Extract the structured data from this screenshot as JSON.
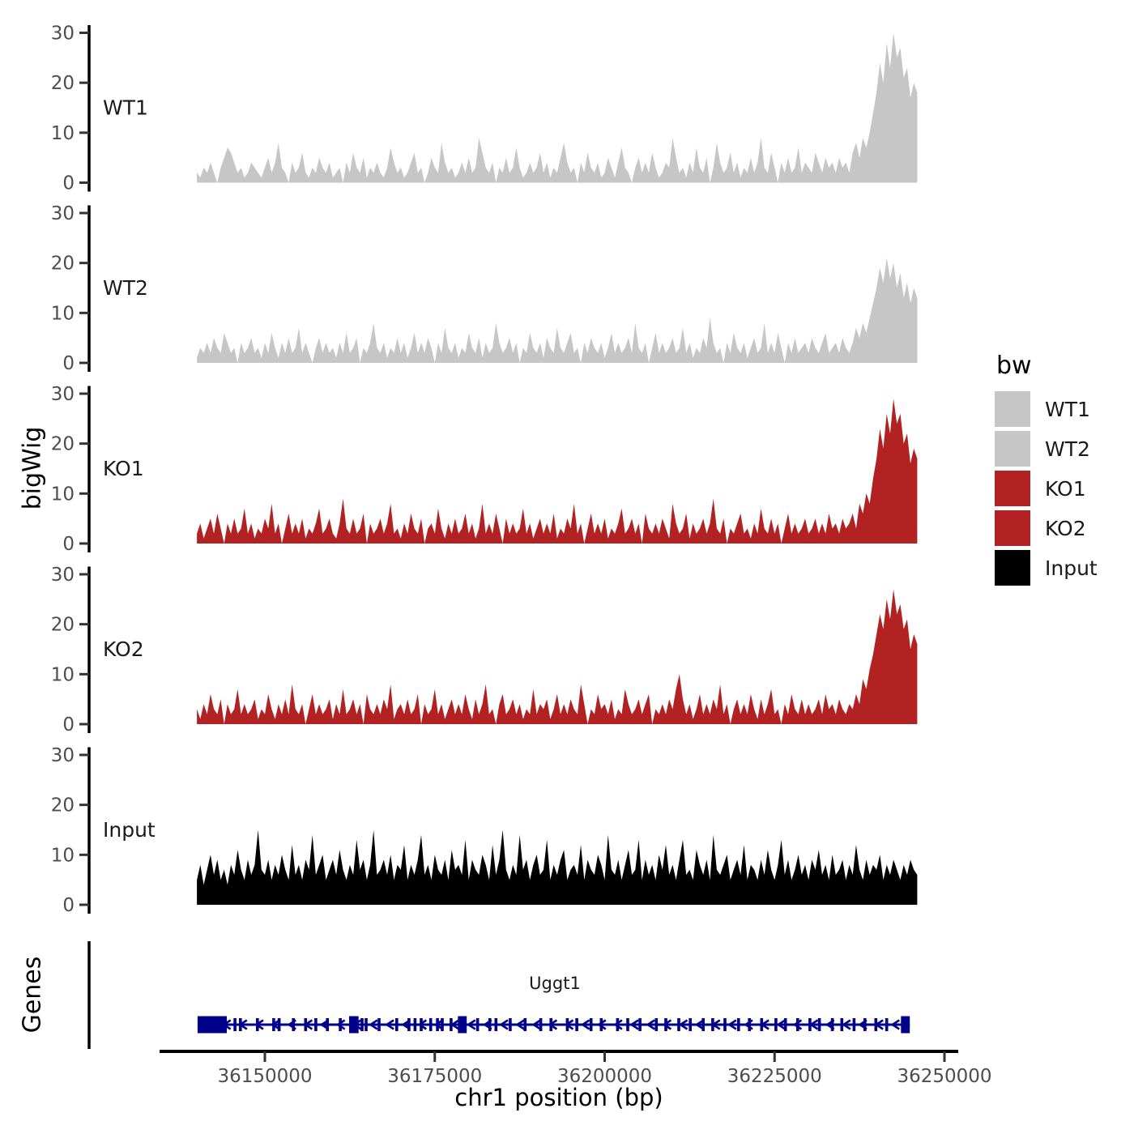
{
  "chart_data": {
    "type": "area",
    "title": "",
    "xlabel": "chr1 position (bp)",
    "ylabel": "bigWig",
    "genes_label": "Genes",
    "xlim": [
      36140000,
      36246000
    ],
    "ylim": [
      0,
      30
    ],
    "y_ticks": [
      0,
      10,
      20,
      30
    ],
    "x_ticks": [
      36150000,
      36175000,
      36200000,
      36225000,
      36250000
    ],
    "x_tick_labels": [
      "36150000",
      "36175000",
      "36200000",
      "36225000",
      "36250000"
    ],
    "grid": "off",
    "legend_position": "right",
    "x_start": 36140000,
    "x_step": 500,
    "series": [
      {
        "name": "WT1",
        "color": "#C6C6C6",
        "values": [
          2,
          1,
          3,
          2,
          4,
          2,
          0,
          3,
          5,
          7,
          6,
          4,
          2,
          3,
          1,
          2,
          4,
          3,
          2,
          1,
          3,
          5,
          2,
          4,
          8,
          3,
          2,
          0,
          4,
          2,
          3,
          6,
          2,
          1,
          3,
          2,
          5,
          3,
          2,
          4,
          1,
          2,
          3,
          0,
          4,
          2,
          6,
          3,
          2,
          5,
          1,
          3,
          2,
          4,
          2,
          1,
          3,
          7,
          4,
          2,
          3,
          1,
          2,
          4,
          6,
          2,
          3,
          0,
          2,
          5,
          3,
          2,
          8,
          4,
          2,
          3,
          1,
          2,
          4,
          2,
          5,
          2,
          3,
          9,
          6,
          3,
          2,
          4,
          0,
          3,
          2,
          5,
          2,
          3,
          7,
          3,
          1,
          2,
          4,
          2,
          3,
          6,
          2,
          4,
          1,
          3,
          2,
          5,
          8,
          4,
          2,
          3,
          0,
          4,
          2,
          6,
          3,
          2,
          4,
          1,
          2,
          5,
          3,
          1,
          4,
          7,
          3,
          2,
          0,
          3,
          5,
          2,
          4,
          2,
          6,
          3,
          1,
          2,
          4,
          3,
          9,
          5,
          2,
          3,
          1,
          4,
          2,
          7,
          3,
          2,
          5,
          0,
          3,
          8,
          4,
          2,
          3,
          6,
          2,
          4,
          1,
          3,
          2,
          5,
          2,
          4,
          9,
          3,
          2,
          6,
          3,
          0,
          4,
          2,
          5,
          2,
          3,
          7,
          2,
          4,
          3,
          2,
          6,
          4,
          2,
          5,
          3,
          4,
          2,
          5,
          3,
          4,
          2,
          6,
          8,
          5,
          9,
          7,
          10,
          14,
          18,
          24,
          20,
          28,
          23,
          30,
          25,
          27,
          21,
          23,
          17,
          20,
          18
        ]
      },
      {
        "name": "WT2",
        "color": "#C6C6C6",
        "values": [
          1,
          3,
          2,
          4,
          2,
          5,
          3,
          2,
          6,
          4,
          2,
          3,
          0,
          4,
          2,
          3,
          5,
          2,
          3,
          1,
          4,
          2,
          6,
          3,
          1,
          4,
          2,
          5,
          2,
          3,
          7,
          2,
          4,
          2,
          0,
          3,
          5,
          2,
          4,
          2,
          3,
          1,
          4,
          2,
          6,
          2,
          3,
          5,
          0,
          3,
          2,
          4,
          8,
          3,
          2,
          4,
          1,
          3,
          2,
          5,
          2,
          4,
          1,
          3,
          6,
          2,
          4,
          2,
          5,
          3,
          0,
          4,
          2,
          7,
          3,
          2,
          4,
          1,
          3,
          2,
          6,
          3,
          2,
          5,
          1,
          4,
          2,
          3,
          8,
          4,
          2,
          3,
          5,
          2,
          4,
          0,
          3,
          2,
          6,
          3,
          2,
          4,
          1,
          5,
          3,
          2,
          7,
          3,
          2,
          4,
          6,
          2,
          3,
          0,
          4,
          2,
          5,
          3,
          2,
          4,
          1,
          3,
          6,
          2,
          4,
          2,
          3,
          5,
          2,
          8,
          3,
          2,
          4,
          0,
          3,
          6,
          2,
          4,
          2,
          3,
          5,
          2,
          3,
          7,
          2,
          4,
          1,
          3,
          2,
          5,
          3,
          9,
          4,
          2,
          3,
          0,
          4,
          2,
          6,
          3,
          2,
          4,
          1,
          3,
          5,
          2,
          3,
          8,
          2,
          4,
          2,
          6,
          3,
          0,
          4,
          2,
          5,
          2,
          3,
          4,
          2,
          5,
          3,
          2,
          4,
          6,
          2,
          3,
          4,
          2,
          5,
          3,
          2,
          4,
          7,
          5,
          8,
          6,
          9,
          12,
          15,
          19,
          16,
          21,
          17,
          20,
          15,
          18,
          13,
          16,
          12,
          15,
          13
        ]
      },
      {
        "name": "KO1",
        "color": "#B22222",
        "values": [
          2,
          4,
          1,
          3,
          5,
          2,
          6,
          3,
          0,
          4,
          2,
          5,
          2,
          3,
          7,
          2,
          4,
          1,
          3,
          2,
          5,
          3,
          8,
          2,
          4,
          0,
          3,
          6,
          2,
          4,
          2,
          5,
          1,
          3,
          2,
          4,
          7,
          2,
          3,
          5,
          2,
          1,
          4,
          9,
          3,
          2,
          5,
          2,
          3,
          6,
          0,
          4,
          2,
          3,
          5,
          2,
          4,
          8,
          2,
          3,
          1,
          4,
          2,
          6,
          3,
          2,
          5,
          0,
          3,
          4,
          2,
          7,
          3,
          1,
          4,
          2,
          5,
          2,
          3,
          6,
          2,
          4,
          1,
          3,
          8,
          2,
          4,
          2,
          6,
          3,
          0,
          5,
          2,
          4,
          2,
          3,
          7,
          2,
          4,
          1,
          3,
          5,
          2,
          4,
          2,
          6,
          1,
          3,
          2,
          5,
          3,
          8,
          2,
          4,
          0,
          3,
          6,
          2,
          4,
          2,
          5,
          1,
          3,
          2,
          4,
          7,
          2,
          3,
          5,
          2,
          4,
          0,
          6,
          3,
          2,
          4,
          2,
          5,
          3,
          1,
          8,
          4,
          2,
          3,
          6,
          1,
          4,
          2,
          3,
          5,
          2,
          4,
          9,
          3,
          2,
          5,
          0,
          3,
          2,
          4,
          6,
          2,
          3,
          1,
          4,
          2,
          7,
          3,
          2,
          5,
          2,
          4,
          0,
          3,
          6,
          2,
          4,
          2,
          3,
          5,
          2,
          3,
          5,
          2,
          4,
          2,
          6,
          3,
          4,
          2,
          5,
          3,
          4,
          6,
          3,
          8,
          6,
          10,
          8,
          13,
          17,
          23,
          19,
          26,
          22,
          29,
          24,
          26,
          20,
          22,
          16,
          19,
          17
        ]
      },
      {
        "name": "KO2",
        "color": "#B22222",
        "values": [
          3,
          1,
          4,
          2,
          6,
          3,
          2,
          5,
          0,
          4,
          2,
          3,
          7,
          2,
          4,
          2,
          3,
          5,
          1,
          3,
          2,
          6,
          3,
          1,
          4,
          2,
          5,
          2,
          8,
          3,
          2,
          4,
          0,
          3,
          6,
          2,
          4,
          2,
          3,
          5,
          1,
          4,
          2,
          7,
          2,
          3,
          5,
          2,
          4,
          0,
          6,
          3,
          2,
          4,
          2,
          5,
          3,
          8,
          1,
          3,
          4,
          2,
          5,
          2,
          3,
          6,
          0,
          4,
          2,
          3,
          7,
          2,
          4,
          1,
          3,
          5,
          2,
          4,
          2,
          6,
          3,
          1,
          5,
          2,
          4,
          8,
          2,
          3,
          0,
          4,
          6,
          2,
          3,
          5,
          2,
          4,
          1,
          3,
          2,
          7,
          2,
          4,
          3,
          5,
          1,
          3,
          6,
          2,
          4,
          2,
          5,
          3,
          2,
          8,
          4,
          0,
          3,
          2,
          6,
          3,
          4,
          2,
          5,
          1,
          3,
          2,
          7,
          4,
          2,
          3,
          5,
          2,
          4,
          6,
          0,
          3,
          2,
          4,
          2,
          5,
          3,
          7,
          10,
          5,
          2,
          4,
          1,
          3,
          6,
          2,
          4,
          2,
          5,
          3,
          8,
          2,
          4,
          0,
          3,
          5,
          2,
          4,
          2,
          6,
          3,
          1,
          5,
          2,
          4,
          7,
          2,
          3,
          0,
          4,
          2,
          6,
          3,
          2,
          5,
          2,
          4,
          2,
          3,
          5,
          2,
          6,
          3,
          4,
          2,
          5,
          3,
          2,
          4,
          3,
          6,
          4,
          9,
          7,
          11,
          14,
          18,
          22,
          19,
          25,
          21,
          27,
          22,
          24,
          19,
          21,
          15,
          18,
          16
        ]
      },
      {
        "name": "Input",
        "color": "#000000",
        "values": [
          5,
          8,
          4,
          7,
          10,
          6,
          9,
          5,
          7,
          4,
          8,
          6,
          11,
          7,
          5,
          9,
          6,
          8,
          15,
          7,
          6,
          9,
          5,
          8,
          6,
          10,
          7,
          5,
          12,
          6,
          8,
          5,
          9,
          7,
          14,
          6,
          8,
          10,
          5,
          7,
          9,
          6,
          11,
          7,
          5,
          8,
          6,
          13,
          7,
          9,
          5,
          8,
          15,
          6,
          7,
          9,
          6,
          10,
          5,
          8,
          7,
          12,
          5,
          8,
          6,
          9,
          14,
          6,
          8,
          5,
          10,
          7,
          6,
          9,
          5,
          11,
          7,
          8,
          6,
          13,
          5,
          9,
          7,
          6,
          10,
          8,
          5,
          12,
          6,
          9,
          15,
          7,
          5,
          8,
          6,
          14,
          7,
          9,
          5,
          8,
          10,
          6,
          7,
          13,
          5,
          8,
          6,
          9,
          11,
          5,
          7,
          8,
          6,
          12,
          5,
          9,
          7,
          6,
          10,
          8,
          5,
          14,
          7,
          6,
          9,
          5,
          8,
          11,
          6,
          7,
          13,
          5,
          9,
          6,
          8,
          5,
          10,
          7,
          12,
          6,
          8,
          5,
          9,
          13,
          6,
          7,
          5,
          11,
          8,
          6,
          9,
          5,
          14,
          7,
          6,
          8,
          10,
          5,
          7,
          9,
          6,
          12,
          5,
          8,
          7,
          5,
          9,
          6,
          11,
          7,
          5,
          8,
          13,
          6,
          9,
          5,
          7,
          10,
          6,
          8,
          5,
          9,
          7,
          11,
          6,
          8,
          5,
          10,
          6,
          7,
          9,
          5,
          8,
          6,
          12,
          7,
          5,
          9,
          6,
          8,
          7,
          10,
          5,
          8,
          6,
          9,
          7,
          5,
          8,
          6,
          9,
          7,
          6
        ]
      }
    ],
    "gene": {
      "name": "Uggt1",
      "chromosome": "chr1",
      "strand": "-",
      "color": "#00008B",
      "start": 36140100,
      "end": 36244900,
      "arrow_spacing": 2400,
      "wide_exons": [
        [
          36140100,
          36144400
        ],
        [
          36162400,
          36163800
        ],
        [
          36178400,
          36179700
        ],
        [
          36243600,
          36244900
        ]
      ],
      "exons": [
        36145600,
        36146400,
        36148900,
        36151300,
        36152100,
        36154200,
        36156000,
        36157500,
        36159200,
        36161100,
        36164300,
        36164900,
        36166800,
        36169400,
        36171200,
        36172100,
        36173000,
        36174400,
        36175400,
        36176100,
        36177400,
        36181300,
        36183100,
        36184000,
        36186100,
        36188300,
        36190600,
        36192100,
        36194500,
        36195900,
        36198000,
        36199500,
        36201900,
        36203400,
        36205200,
        36207600,
        36209000,
        36210900,
        36212600,
        36214500,
        36215900,
        36217700,
        36219700,
        36221300,
        36223100,
        36225200,
        36226600,
        36228400,
        36230200,
        36231600,
        36233500,
        36234900,
        36236700,
        36238300,
        36239900,
        36241500
      ]
    },
    "legend": {
      "title": "bw",
      "items": [
        {
          "label": "WT1",
          "color": "#C6C6C6"
        },
        {
          "label": "WT2",
          "color": "#C6C6C6"
        },
        {
          "label": "KO1",
          "color": "#B22222"
        },
        {
          "label": "KO2",
          "color": "#B22222"
        },
        {
          "label": "Input",
          "color": "#000000"
        }
      ]
    },
    "colors": {
      "axis_line": "#000000",
      "tick_label": "#4D4D4D",
      "track_label": "#1A1A1A",
      "background": "#FFFFFF"
    }
  }
}
